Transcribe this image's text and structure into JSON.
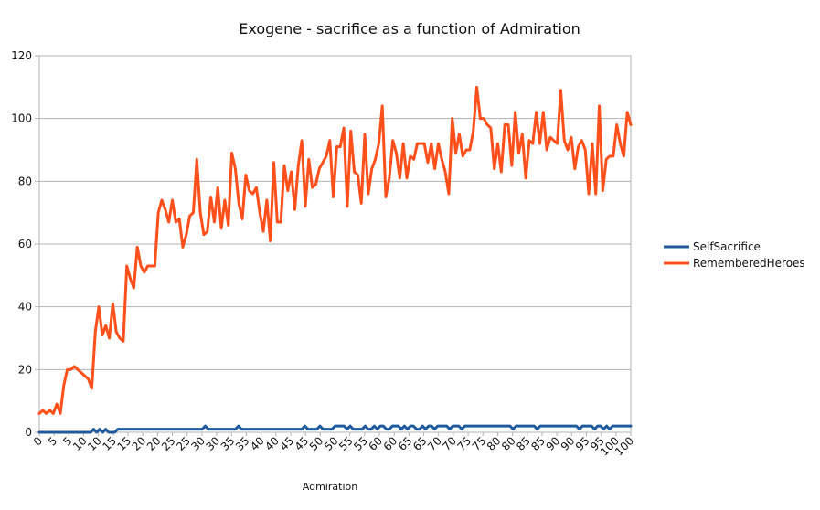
{
  "chart_data": {
    "type": "line",
    "title": "Exogene - sacrifice as a function of Admiration",
    "xlabel": "Admiration",
    "ylabel": "",
    "ylim": [
      0,
      120
    ],
    "yticks": [
      0,
      20,
      40,
      60,
      80,
      100,
      120
    ],
    "x_tick_labels": [
      "0",
      "5",
      "5",
      "10",
      "10",
      "15",
      "15",
      "20",
      "20",
      "25",
      "25",
      "30",
      "30",
      "35",
      "35",
      "40",
      "40",
      "45",
      "45",
      "50",
      "50",
      "55",
      "55",
      "60",
      "60",
      "65",
      "65",
      "70",
      "70",
      "75",
      "75",
      "80",
      "80",
      "85",
      "85",
      "90",
      "90",
      "95",
      "95",
      "100",
      "100"
    ],
    "grid": "horizontal",
    "legend_position": "right",
    "colors": {
      "SelfSacrifice": "#1f5b9c",
      "RememberedHeroes": "#ff4f1a"
    },
    "series": [
      {
        "name": "SelfSacrifice",
        "values": [
          0,
          0,
          0,
          0,
          0,
          0,
          0,
          0,
          0,
          0,
          0,
          0,
          0,
          0,
          0,
          0,
          0,
          0,
          1,
          0,
          1,
          0,
          1,
          0,
          0,
          0,
          1,
          1,
          1,
          1,
          1,
          1,
          1,
          1,
          1,
          1,
          1,
          1,
          1,
          1,
          1,
          1,
          1,
          1,
          1,
          1,
          1,
          1,
          1,
          1,
          1,
          1,
          1,
          1,
          1,
          2,
          1,
          1,
          1,
          1,
          1,
          1,
          1,
          1,
          1,
          1,
          2,
          1,
          1,
          1,
          1,
          1,
          1,
          1,
          1,
          1,
          1,
          1,
          1,
          1,
          1,
          1,
          1,
          1,
          1,
          1,
          1,
          1,
          2,
          1,
          1,
          1,
          1,
          2,
          1,
          1,
          1,
          1,
          2,
          2,
          2,
          2,
          1,
          2,
          1,
          1,
          1,
          1,
          2,
          1,
          1,
          2,
          1,
          2,
          2,
          1,
          1,
          2,
          2,
          2,
          1,
          2,
          1,
          2,
          2,
          1,
          1,
          2,
          1,
          2,
          2,
          1,
          2,
          2,
          2,
          2,
          1,
          2,
          2,
          2,
          1,
          2,
          2,
          2,
          2,
          2,
          2,
          2,
          2,
          2,
          2,
          2,
          2,
          2,
          2,
          2,
          2,
          1,
          2,
          2,
          2,
          2,
          2,
          2,
          2,
          1,
          2,
          2,
          2,
          2,
          2,
          2,
          2,
          2,
          2,
          2,
          2,
          2,
          2,
          1,
          2,
          2,
          2,
          2,
          1,
          2,
          2,
          1,
          2,
          1,
          2,
          2,
          2,
          2,
          2,
          2,
          2
        ]
      },
      {
        "name": "RememberedHeroes",
        "values": [
          6,
          7,
          6,
          7,
          6,
          9,
          6,
          15,
          20,
          20,
          21,
          20,
          19,
          18,
          17,
          14,
          32,
          40,
          31,
          34,
          30,
          41,
          32,
          30,
          29,
          53,
          49,
          46,
          59,
          53,
          51,
          53,
          53,
          53,
          70,
          74,
          71,
          67,
          74,
          67,
          68,
          59,
          63,
          69,
          70,
          87,
          70,
          63,
          64,
          75,
          67,
          78,
          65,
          74,
          66,
          89,
          84,
          73,
          68,
          82,
          77,
          76,
          78,
          70,
          64,
          74,
          61,
          86,
          67,
          67,
          85,
          77,
          83,
          71,
          85,
          93,
          72,
          87,
          78,
          79,
          84,
          86,
          88,
          93,
          75,
          91,
          91,
          97,
          72,
          96,
          83,
          82,
          73,
          95,
          76,
          84,
          87,
          92,
          104,
          75,
          81,
          93,
          89,
          81,
          92,
          81,
          88,
          87,
          92,
          92,
          92,
          86,
          92,
          84,
          92,
          87,
          83,
          76,
          100,
          89,
          95,
          88,
          90,
          90,
          96,
          110,
          100,
          100,
          98,
          97,
          84,
          92,
          83,
          98,
          98,
          85,
          102,
          89,
          95,
          81,
          93,
          92,
          102,
          92,
          102,
          90,
          94,
          93,
          92,
          109,
          93,
          90,
          94,
          84,
          91,
          93,
          90,
          76,
          92,
          76,
          104,
          77,
          87,
          88,
          88,
          98,
          92,
          88,
          102,
          98
        ]
      }
    ]
  }
}
